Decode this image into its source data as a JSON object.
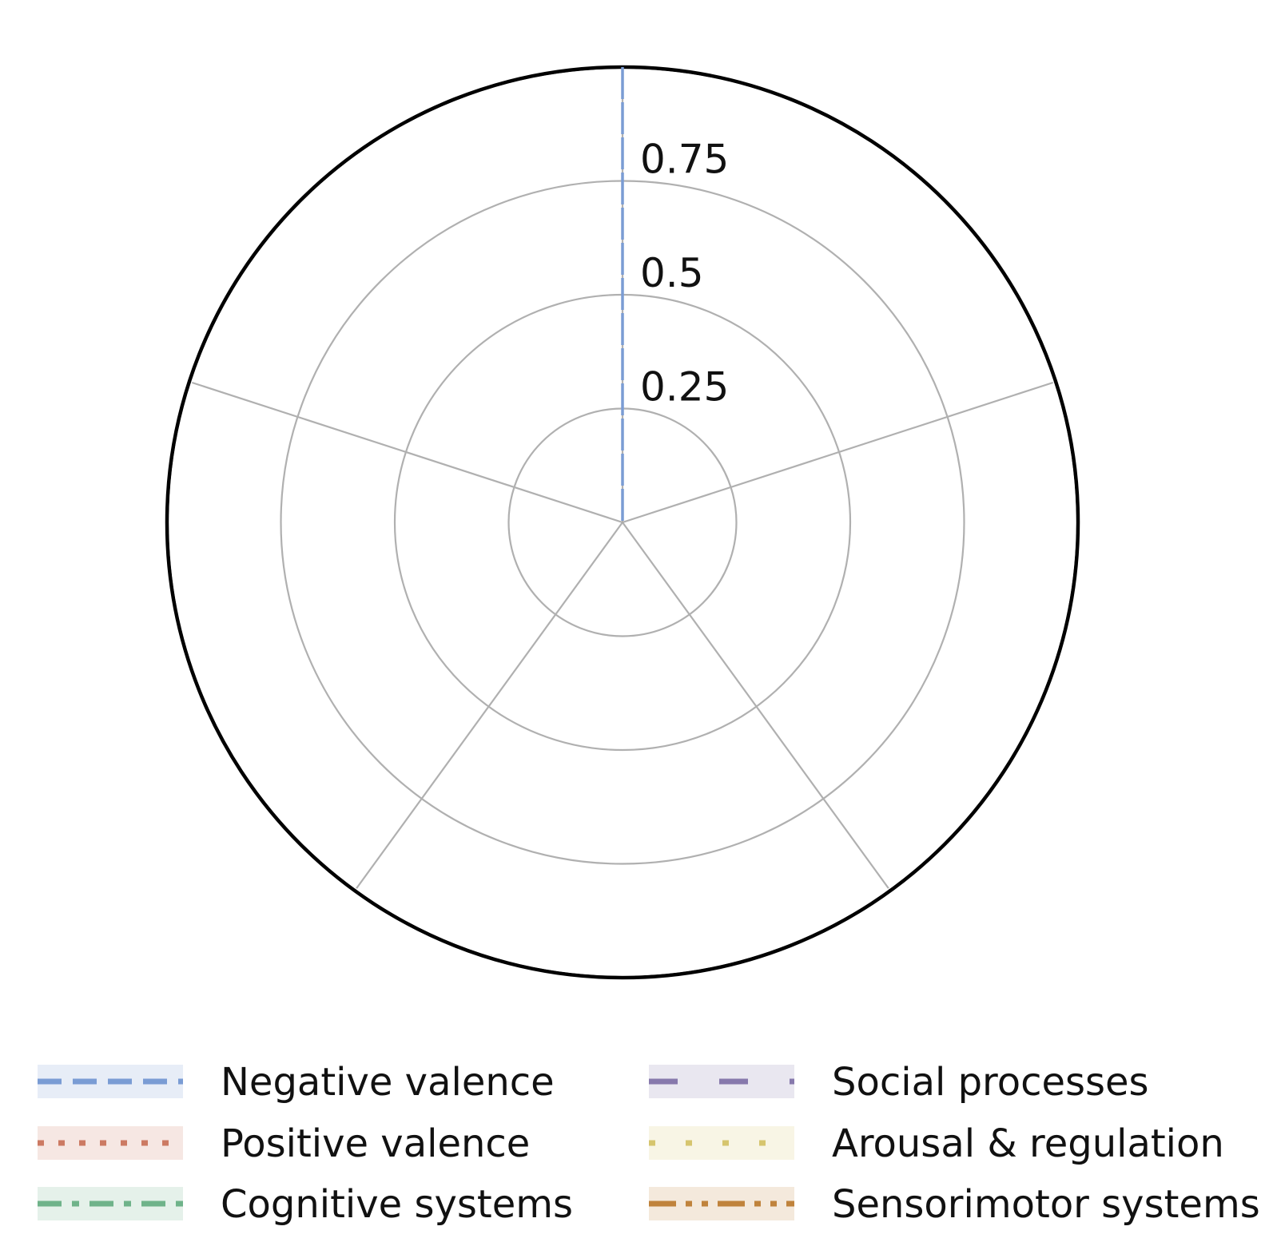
{
  "chart_data": {
    "type": "radar",
    "categories": [
      "",
      "",
      "",
      "",
      ""
    ],
    "rlim": [
      0,
      1
    ],
    "rticks": [
      0.25,
      0.5,
      0.75
    ],
    "rtick_labels": [
      "0.25",
      "0.5",
      "0.75"
    ],
    "grid": true,
    "legend_position": "bottom",
    "series": [
      {
        "name": "Negative valence",
        "color": "#7a9cd4",
        "dash": "dashed",
        "values": [
          1,
          0,
          0,
          0,
          0
        ]
      },
      {
        "name": "Positive valence",
        "color": "#cc7a63",
        "dash": "dotted",
        "values": [
          0,
          0,
          0,
          0,
          0
        ]
      },
      {
        "name": "Cognitive systems",
        "color": "#6fb38a",
        "dash": "dashdot",
        "values": [
          0,
          0,
          0,
          0,
          0
        ]
      },
      {
        "name": "Social processes",
        "color": "#8779ac",
        "dash": "longdash",
        "values": [
          0,
          0,
          0,
          0,
          0
        ]
      },
      {
        "name": "Arousal & regulation",
        "color": "#d6c56e",
        "dash": "sparsedot",
        "values": [
          0,
          0,
          0,
          0,
          0
        ]
      },
      {
        "name": "Sensorimotor systems",
        "color": "#c0833c",
        "dash": "dashdotdot",
        "values": [
          0,
          0,
          0,
          0,
          0
        ]
      }
    ]
  }
}
